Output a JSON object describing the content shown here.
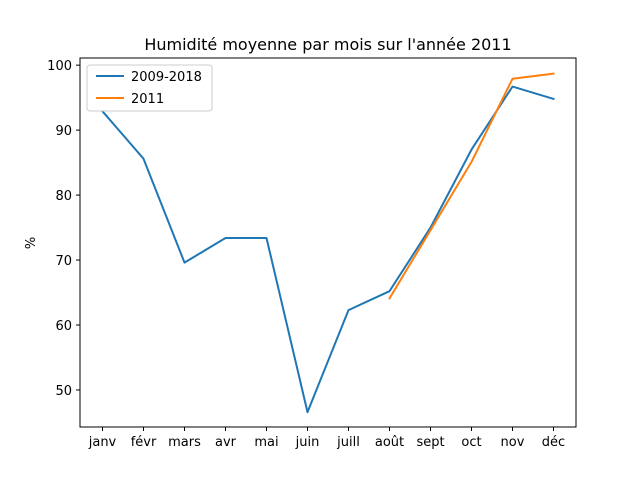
{
  "chart_data": {
    "type": "line",
    "title": "Humidité moyenne par mois sur l'année 2011",
    "xlabel": "",
    "ylabel": "%",
    "categories": [
      "janv",
      "févr",
      "mars",
      "avr",
      "mai",
      "juin",
      "juill",
      "août",
      "sept",
      "oct",
      "nov",
      "déc"
    ],
    "yticks": [
      50,
      60,
      70,
      80,
      90,
      100
    ],
    "ylim": [
      44.3,
      101.1
    ],
    "grid": false,
    "legend": "top-left",
    "series": [
      {
        "name": "2009-2018",
        "color": "#1f77b4",
        "values": [
          92.9,
          85.6,
          69.6,
          73.4,
          73.4,
          46.6,
          62.3,
          65.2,
          75.0,
          87.0,
          96.7,
          94.8
        ]
      },
      {
        "name": "2011",
        "color": "#ff7f0e",
        "values": [
          null,
          null,
          null,
          null,
          null,
          null,
          null,
          64.1,
          74.6,
          85.1,
          97.9,
          98.7
        ]
      }
    ]
  }
}
